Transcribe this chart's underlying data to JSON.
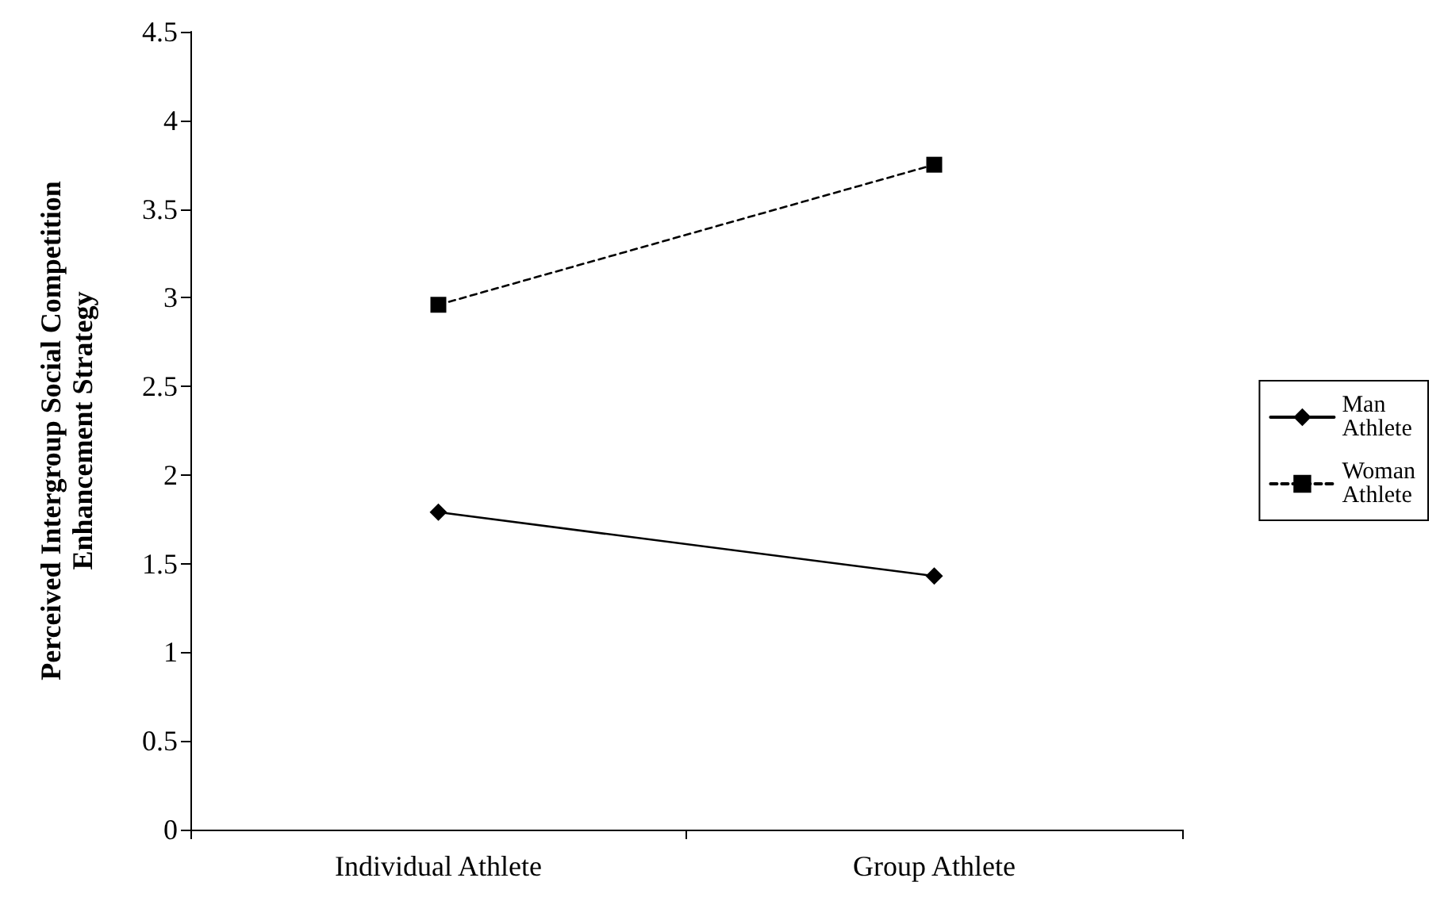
{
  "chart_data": {
    "type": "line",
    "ylabel": "Perceived Intergroup Social Competition\nEnhancement Strategy",
    "categories": [
      "Individual Athlete",
      "Group Athlete"
    ],
    "series": [
      {
        "name": "Man Athlete",
        "color": "#000000",
        "values": [
          1.79,
          1.43
        ],
        "marker": "diamond",
        "line_style": "solid"
      },
      {
        "name": "Woman Athlete",
        "color": "#000000",
        "values": [
          2.96,
          3.75
        ],
        "marker": "square",
        "line_style": "dashed"
      }
    ],
    "ylim": [
      0,
      4.5
    ],
    "yticks": [
      0,
      0.5,
      1,
      1.5,
      2,
      2.5,
      3,
      3.5,
      4,
      4.5
    ],
    "grid": false,
    "legend": "right"
  }
}
